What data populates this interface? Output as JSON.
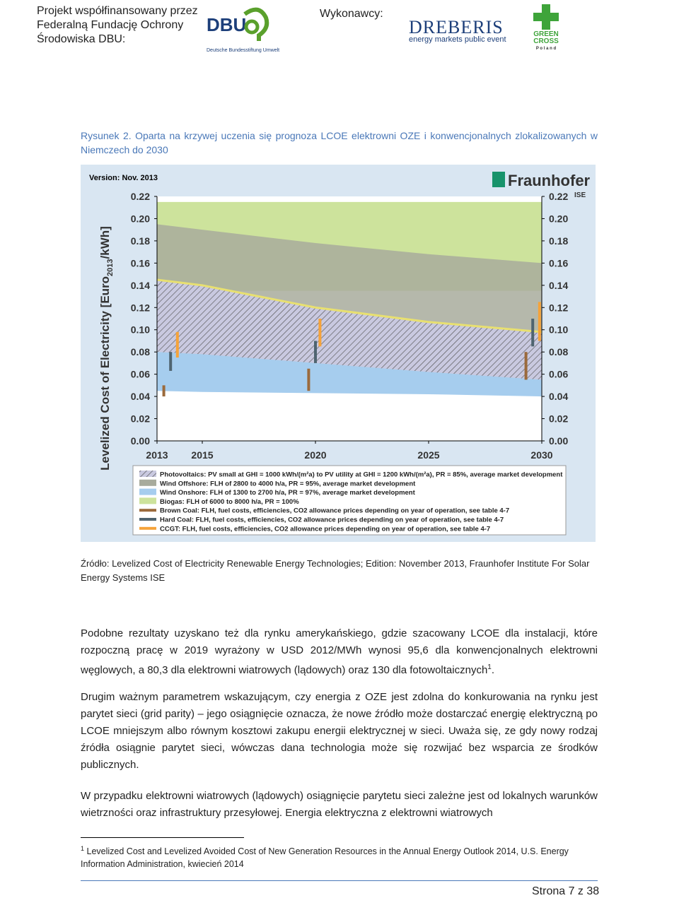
{
  "header": {
    "sponsor_lines": [
      "Projekt współfinansowany przez",
      "Federalną Fundację Ochrony",
      "Środowiska DBU:"
    ],
    "dbu_logo": "DBU",
    "dbu_name": "Deutsche Bundesstiftung Umwelt",
    "contractors": "Wykonawcy:",
    "dreberis": "DREBERIS",
    "dreberis_tagline": "energy markets public event",
    "green_cross": [
      "GREEN",
      "CROSS"
    ],
    "poland": "P o l a n d"
  },
  "caption": "Rysunek 2. Oparta na krzywej uczenia się prognoza LCOE elektrowni OZE i konwencjonalnych zlokalizowanych w Niemczech do 2030",
  "chart_data": {
    "type": "area",
    "version": "Version: Nov. 2013",
    "logo": "Fraunhofer",
    "logo_sub": "ISE",
    "y_label": [
      "Levelized Cost of Electricity [Euro",
      "2013",
      "/kWh]"
    ],
    "x": [
      2013,
      2015,
      2020,
      2025,
      2030
    ],
    "xlim": [
      2013,
      2030
    ],
    "xticks": [
      2013,
      2015,
      2020,
      2025,
      2030
    ],
    "ylim": [
      0,
      0.22
    ],
    "yticks": [
      {
        "value": 0,
        "label": "0.00"
      },
      {
        "value": 0.02,
        "label": "0.02"
      },
      {
        "value": 0.04,
        "label": "0.04"
      },
      {
        "value": 0.06,
        "label": "0.06"
      },
      {
        "value": 0.08,
        "label": "0.08"
      },
      {
        "value": 0.1,
        "label": "0.10"
      },
      {
        "value": 0.12,
        "label": "0.12"
      },
      {
        "value": 0.14,
        "label": "0.14"
      },
      {
        "value": 0.16,
        "label": "0.16"
      },
      {
        "value": 0.18,
        "label": "0.18"
      },
      {
        "value": 0.2,
        "label": "0.20"
      },
      {
        "value": 0.22,
        "label": "0.22"
      }
    ],
    "series": [
      {
        "name": "Photovoltaics: PV small at GHI = 1000 kWh/(m²a) to PV utility at GHI = 1200 kWh/(m²a), PR = 85%, average market development",
        "color": "#e8e070",
        "high": [
          0.145,
          0.14,
          0.12,
          0.107,
          0.098
        ],
        "low": [
          0.08,
          0.078,
          0.07,
          0.062,
          0.055
        ]
      },
      {
        "name": "Wind Offshore: FLH of 2800 to 4000 h/a, PR = 95%, average market development",
        "color": "#a8ab9c",
        "high": [
          0.195,
          0.19,
          0.178,
          0.168,
          0.16
        ],
        "low": [
          0.12,
          0.115,
          0.105,
          0.1,
          0.095
        ]
      },
      {
        "name": "Wind Onshore: FLH of 1300 to 2700 h/a, PR = 97%, average market development",
        "color": "#a6cdee",
        "high": [
          0.08,
          0.08,
          0.078,
          0.076,
          0.075
        ],
        "low": [
          0.045,
          0.044,
          0.043,
          0.042,
          0.04
        ]
      },
      {
        "name": "Biogas: FLH of 6000 to 8000 h/a, PR = 100%",
        "color": "#cde39c",
        "high": [
          0.215,
          0.215,
          0.215,
          0.215,
          0.215
        ],
        "low": [
          0.135,
          0.135,
          0.135,
          0.135,
          0.135
        ]
      }
    ],
    "ranges": [
      {
        "name": "Brown Coal: FLH, fuel costs, efficiencies, CO2 allowance prices depending on year of operation, see table 4-7",
        "color": "#9b6a3c",
        "x": [
          2013.3,
          2019.7,
          2029.3
        ],
        "low": [
          0.04,
          0.045,
          0.055
        ],
        "high": [
          0.05,
          0.065,
          0.08
        ]
      },
      {
        "name": "Hard Coal: FLH, fuel costs, efficiencies, CO2 allowance prices depending on year of operation, see table 4-7",
        "color": "#4f6470",
        "x": [
          2013.6,
          2020,
          2029.6
        ],
        "low": [
          0.063,
          0.07,
          0.085
        ],
        "high": [
          0.08,
          0.09,
          0.11
        ]
      },
      {
        "name": "CCGT: FLH, fuel costs, efficiencies, CO2 allowance prices depending on year of operation, see table 4-7",
        "color": "#f5a33a",
        "x": [
          2013.9,
          2020.2,
          2029.9
        ],
        "low": [
          0.075,
          0.085,
          0.09
        ],
        "high": [
          0.098,
          0.11,
          0.125
        ]
      }
    ]
  },
  "source": "Źródło: Levelized Cost of Electricity Renewable Energy Technologies; Edition: November 2013, Fraunhofer Institute For Solar Energy Systems ISE",
  "paragraphs": [
    {
      "text": "Podobne rezultaty uzyskano też dla rynku amerykańskiego, gdzie szacowany LCOE dla instalacji, które rozpoczną pracę w 2019 wyrażony w USD 2012/MWh wynosi 95,6 dla konwencjonalnych elektrowni węglowych, a 80,3 dla elektrowni wiatrowych (lądowych) oraz 130 dla fotowoltaicznych",
      "ref": "1",
      "end": "."
    },
    {
      "text": "Drugim ważnym parametrem wskazującym, czy energia z OZE jest zdolna do konkurowania na rynku jest parytet sieci (grid parity) – jego osiągnięcie oznacza, że nowe źródło może dostarczać energię elektryczną po LCOE mniejszym albo równym kosztowi zakupu energii elektrycznej w sieci. Uważa się, ze gdy nowy rodzaj źródła osiągnie parytet sieci, wówczas dana technologia może się rozwijać bez wsparcia ze środków publicznych."
    },
    {
      "text": "W przypadku elektrowni wiatrowych (lądowych) osiągnięcie parytetu sieci zależne jest od lokalnych warunków wietrzności oraz infrastruktury przesyłowej. Energia elektryczna z elektrowni wiatrowych"
    }
  ],
  "footnote": {
    "number": "1",
    "text": "Levelized Cost and Levelized Avoided Cost of New Generation Resources in the Annual Energy Outlook 2014, U.S. Energy Information Administration, kwiecień 2014"
  },
  "page_number": "Strona 7 z 38"
}
